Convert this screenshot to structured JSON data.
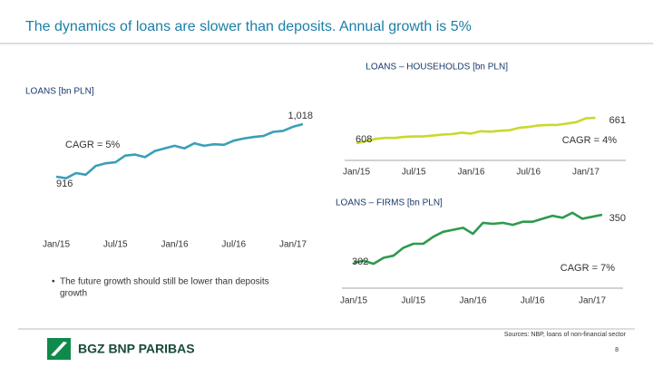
{
  "title": "The dynamics of loans are slower than deposits. Annual growth is 5%",
  "bullet": [
    "The future growth should still be lower than deposits",
    "growth"
  ],
  "source": "Sources: NBP, loans of non-financial sector",
  "page": "8",
  "logo": "BGZ BNP PARIBAS",
  "chart_data": [
    {
      "type": "line",
      "title": "LOANS [bn PLN]",
      "categories": [
        "Jan/15",
        null,
        null,
        null,
        null,
        null,
        "Jul/15",
        null,
        null,
        null,
        null,
        null,
        "Jan/16",
        null,
        null,
        null,
        null,
        null,
        "Jul/16",
        null,
        null,
        null,
        null,
        null,
        "Jan/17",
        null
      ],
      "series": [
        {
          "name": "LOANS",
          "color": "#3a9fb8",
          "values": [
            916,
            913,
            923,
            920,
            937,
            942,
            944,
            957,
            959,
            954,
            966,
            971,
            976,
            971,
            981,
            976,
            979,
            978,
            986,
            990,
            993,
            995,
            1003,
            1005,
            1013,
            1018
          ]
        }
      ],
      "annotations": [
        "1,018",
        "916",
        "CAGR = 5%"
      ],
      "ylim": [
        880,
        1040
      ]
    },
    {
      "type": "line",
      "title": "LOANS – HOUSEHOLDS [bn PLN]",
      "categories": [
        "Jan/15",
        null,
        null,
        null,
        null,
        null,
        "Jul/15",
        null,
        null,
        null,
        null,
        null,
        "Jan/16",
        null,
        null,
        null,
        null,
        null,
        "Jul/16",
        null,
        null,
        null,
        null,
        null,
        "Jan/17",
        null
      ],
      "series": [
        {
          "name": "LOANS – HOUSEHOLDS",
          "color": "#c9d92b",
          "values": [
            608,
            612,
            617,
            619,
            619,
            621,
            622,
            622,
            624,
            626,
            627,
            630,
            628,
            633,
            632,
            634,
            635,
            640,
            642,
            645,
            646,
            646,
            649,
            652,
            660,
            661
          ]
        }
      ],
      "annotations": [
        "661",
        "608",
        "CAGR = 4%"
      ],
      "ylim": [
        590,
        680
      ]
    },
    {
      "type": "line",
      "title": "LOANS – FIRMS [bn PLN]",
      "categories": [
        "Jan/15",
        null,
        null,
        null,
        null,
        null,
        "Jul/15",
        null,
        null,
        null,
        null,
        null,
        "Jan/16",
        null,
        null,
        null,
        null,
        null,
        "Jul/16",
        null,
        null,
        null,
        null,
        null,
        "Jan/17",
        null
      ],
      "series": [
        {
          "name": "LOANS – FIRMS",
          "color": "#2e9a4e",
          "values": [
            302,
            304,
            301,
            307,
            309,
            317,
            321,
            321,
            328,
            333,
            335,
            337,
            331,
            342,
            341,
            342,
            340,
            343,
            343,
            346,
            349,
            347,
            352,
            346,
            348,
            350
          ]
        }
      ],
      "annotations": [
        "350",
        "302",
        "CAGR = 7%"
      ],
      "ylim": [
        290,
        360
      ]
    }
  ]
}
